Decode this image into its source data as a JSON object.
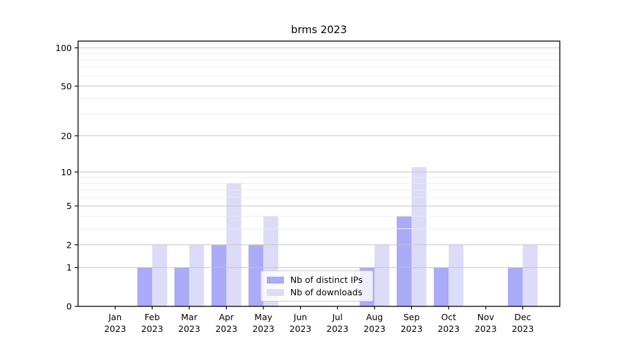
{
  "chart_data": {
    "type": "bar",
    "title": "brms 2023",
    "categories": [
      "Jan 2023",
      "Feb 2023",
      "Mar 2023",
      "Apr 2023",
      "May 2023",
      "Jun 2023",
      "Jul 2023",
      "Aug 2023",
      "Sep 2023",
      "Oct 2023",
      "Nov 2023",
      "Dec 2023"
    ],
    "series": [
      {
        "name": "Nb of distinct IPs",
        "color": "#aaaaf8",
        "values": [
          0,
          1,
          1,
          2,
          2,
          0,
          0,
          1,
          4,
          1,
          0,
          1
        ]
      },
      {
        "name": "Nb of downloads",
        "color": "#dcdcf8",
        "values": [
          0,
          2,
          2,
          8,
          4,
          0,
          0,
          2,
          11,
          2,
          0,
          2
        ]
      }
    ],
    "xlabel": "",
    "ylabel": "",
    "y_axis": {
      "scale": "log1p",
      "ticks": [
        0,
        1,
        2,
        5,
        10,
        20,
        50,
        100
      ],
      "minor_ticks": [
        3,
        4,
        6,
        7,
        8,
        9,
        30,
        40,
        60,
        70,
        80,
        90
      ],
      "ylim": [
        0,
        113
      ]
    },
    "grid": true,
    "grid_above_bars": true,
    "legend_position": "lower center"
  },
  "style": {
    "background": "#ffffff",
    "grid_major_color": "#c6c6c6",
    "grid_minor_color": "#ececec",
    "axis_color": "#000000",
    "text_color": "#000000",
    "legend_border_color": "#cccccc",
    "legend_background": "rgba(255,255,255,0.8)"
  }
}
